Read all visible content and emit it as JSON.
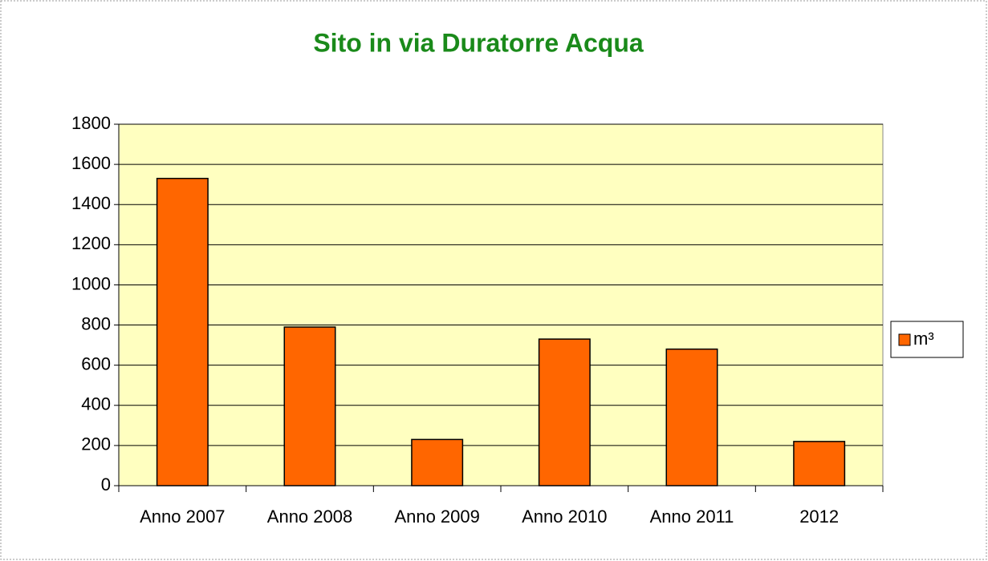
{
  "chart_data": {
    "type": "bar",
    "title": "Sito in via Duratorre Acqua",
    "categories": [
      "Anno 2007",
      "Anno 2008",
      "Anno 2009",
      "Anno 2010",
      "Anno 2011",
      "2012"
    ],
    "series": [
      {
        "name": "m³",
        "color": "#ff6600",
        "values": [
          1530,
          790,
          230,
          730,
          680,
          220
        ]
      }
    ],
    "ylim": [
      0,
      1800
    ],
    "yticks": [
      0,
      200,
      400,
      600,
      800,
      1000,
      1200,
      1400,
      1600,
      1800
    ],
    "grid": true,
    "legend": "right",
    "plot_background": "#ffffc0"
  }
}
